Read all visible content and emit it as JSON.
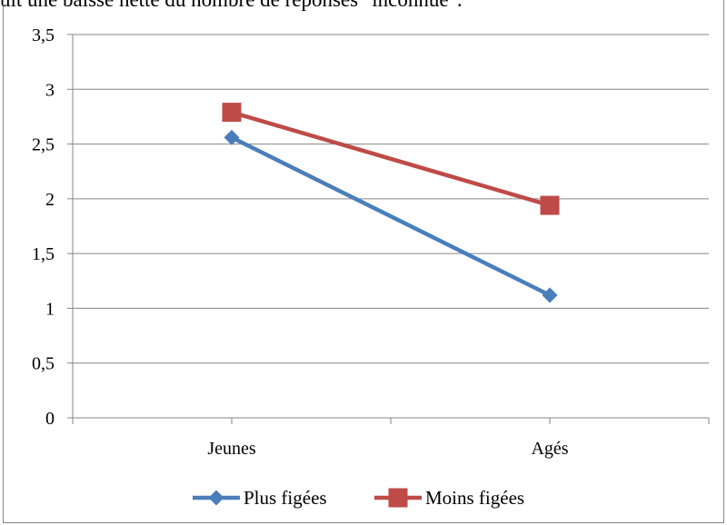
{
  "header_fragment": "uit une baisse nette du nombre de réponses \"inconnue\".",
  "chart_data": {
    "type": "line",
    "categories": [
      "Jeunes",
      "Agés"
    ],
    "ylim": [
      0,
      3.5
    ],
    "yticks": [
      "0",
      "0,5",
      "1",
      "1,5",
      "2",
      "2,5",
      "3",
      "3,5"
    ],
    "ytick_values": [
      0,
      0.5,
      1,
      1.5,
      2,
      2.5,
      3,
      3.5
    ],
    "grid": true,
    "legend_position": "bottom",
    "series": [
      {
        "name": "Plus figées",
        "values": [
          2.56,
          1.12
        ],
        "color": "#4a7ebb",
        "marker": "diamond"
      },
      {
        "name": "Moins figées",
        "values": [
          2.79,
          1.94
        ],
        "color": "#be4b48",
        "marker": "square"
      }
    ]
  }
}
